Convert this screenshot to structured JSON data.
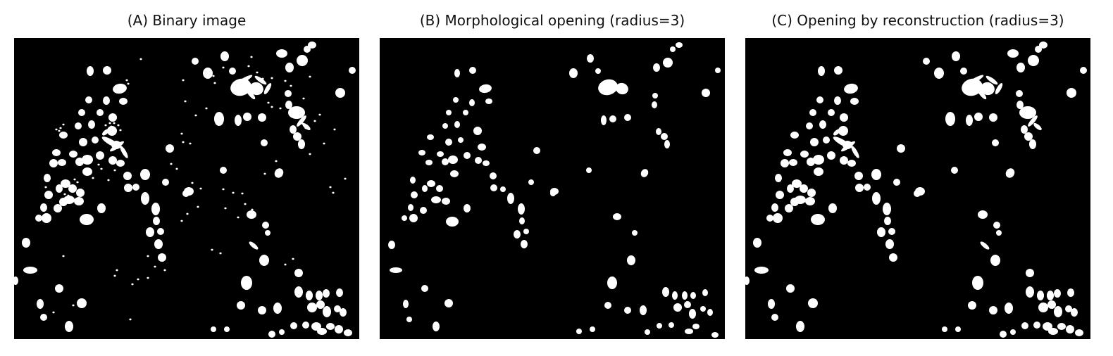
{
  "figure": {
    "panels": [
      {
        "key": "a",
        "title": "(A) Binary image"
      },
      {
        "key": "b",
        "title": "(B) Morphological opening (radius=3)"
      },
      {
        "key": "c",
        "title": "(C) Opening by reconstruction (radius=3)"
      }
    ],
    "colors": {
      "background": "#000000",
      "foreground": "#ffffff",
      "page": "#ffffff"
    }
  }
}
